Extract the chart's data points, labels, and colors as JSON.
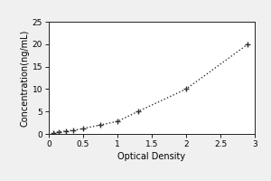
{
  "x_data": [
    0.07,
    0.15,
    0.25,
    0.35,
    0.5,
    0.75,
    1.0,
    1.3,
    2.0,
    2.9
  ],
  "y_data": [
    0.3,
    0.5,
    0.6,
    0.8,
    1.2,
    2.0,
    2.8,
    5.0,
    10.0,
    20.0
  ],
  "xlim": [
    0,
    3.0
  ],
  "ylim": [
    0,
    25
  ],
  "xticks": [
    0,
    0.5,
    1.0,
    1.5,
    2.0,
    2.5,
    3.0
  ],
  "yticks": [
    0,
    5,
    10,
    15,
    20,
    25
  ],
  "xlabel": "Optical Density",
  "ylabel": "Concentration(ng/mL)",
  "line_color": "#333333",
  "marker": "+",
  "marker_size": 5,
  "background_color": "#f0f0f0",
  "plot_bg_color": "#ffffff",
  "axis_label_fontsize": 7,
  "tick_fontsize": 6.5
}
